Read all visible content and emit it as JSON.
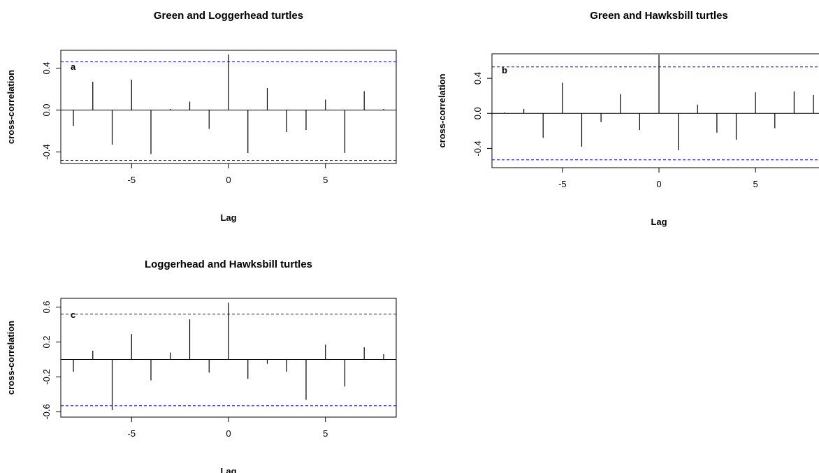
{
  "chart_data": [
    {
      "type": "bar",
      "title": "Green and Loggerhead turtles",
      "panel_label": "a",
      "x_label": "Lag",
      "y_label": "cross-correlation",
      "x": [
        -8,
        -7,
        -6,
        -5,
        -4,
        -3,
        -2,
        -1,
        0,
        1,
        2,
        3,
        4,
        5,
        6,
        7,
        8
      ],
      "values": [
        -0.15,
        0.27,
        -0.33,
        0.29,
        -0.42,
        0.01,
        0.08,
        -0.18,
        0.53,
        -0.41,
        0.21,
        -0.21,
        -0.19,
        0.1,
        -0.41,
        0.18,
        0.01
      ],
      "confidence_bounds": [
        0.46,
        -0.48
      ],
      "color": "#000000",
      "bound_color": "#0000ff",
      "xlim": [
        -8.65,
        8.65
      ],
      "xticks": [
        -5,
        0,
        5
      ],
      "ylim": [
        -0.51,
        0.57
      ],
      "yticks": [
        -0.4,
        {
          "value": 0,
          "label": "0.0"
        },
        0.4
      ]
    },
    {
      "type": "bar",
      "title": "Green and Hawksbill turtles",
      "panel_label": "b",
      "x_label": "Lag",
      "y_label": "cross-correlation",
      "x": [
        -8,
        -7,
        -6,
        -5,
        -4,
        -3,
        -2,
        -1,
        0,
        1,
        2,
        3,
        4,
        5,
        6,
        7,
        8
      ],
      "values": [
        0.01,
        0.05,
        -0.28,
        0.35,
        -0.38,
        -0.1,
        0.22,
        -0.19,
        0.67,
        -0.42,
        0.1,
        -0.22,
        -0.3,
        0.24,
        -0.17,
        0.25,
        0.21
      ],
      "confidence_bounds": [
        0.53,
        -0.53
      ],
      "color": "#000000",
      "bound_color": "#0000ff",
      "xlim": [
        -8.65,
        8.65
      ],
      "xticks": [
        -5,
        0,
        5
      ],
      "ylim": [
        -0.62,
        0.68
      ],
      "yticks": [
        -0.4,
        {
          "value": 0,
          "label": "0.0"
        },
        0.4
      ]
    },
    {
      "type": "bar",
      "title": "Loggerhead and Hawksbill turtles",
      "panel_label": "c",
      "x_label": "Lag",
      "y_label": "cross-correlation",
      "x": [
        -8,
        -7,
        -6,
        -5,
        -4,
        -3,
        -2,
        -1,
        0,
        1,
        2,
        3,
        4,
        5,
        6,
        7,
        8
      ],
      "values": [
        -0.14,
        0.1,
        -0.58,
        0.29,
        -0.24,
        0.08,
        0.46,
        -0.15,
        0.65,
        -0.22,
        -0.05,
        -0.14,
        -0.46,
        0.17,
        -0.31,
        0.14,
        0.06
      ],
      "confidence_bounds": [
        0.52,
        -0.53
      ],
      "color": "#000000",
      "bound_color": "#0000ff",
      "xlim": [
        -8.65,
        8.65
      ],
      "xticks": [
        -5,
        0,
        5
      ],
      "ylim": [
        -0.66,
        0.7
      ],
      "yticks": [
        -0.6,
        -0.2,
        0.2,
        0.6
      ]
    }
  ]
}
